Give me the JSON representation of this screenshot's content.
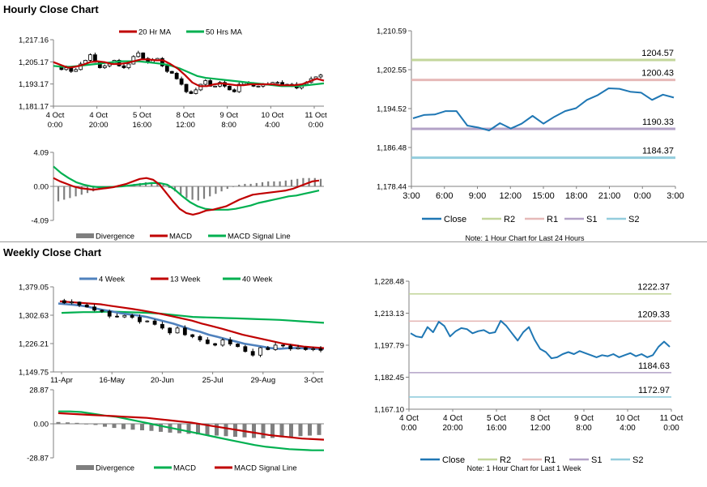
{
  "hourly_section": {
    "title": "Hourly Close Chart"
  },
  "weekly_section": {
    "title": "Weekly Close Chart"
  },
  "colors": {
    "ma_short": "#c00000",
    "ma_long": "#00b050",
    "week4": "#4f81bd",
    "divergence": "#7f7f7f",
    "close": "#1f77b4",
    "r2": "#c3d69b",
    "r1": "#e6b9b8",
    "s1": "#b3a2c7",
    "s2": "#93cddd"
  },
  "chart_data": [
    {
      "id": "hourly-price",
      "type": "line",
      "title": "Hourly Close Chart",
      "legend": [
        "20 Hr MA",
        "50 Hrs MA"
      ],
      "y_ticks": [
        "1,217.16",
        "1,205.17",
        "1,193.17",
        "1,181.17"
      ],
      "ylim": [
        1181.17,
        1217.16
      ],
      "x_ticks": [
        [
          "4 Oct",
          "0:00"
        ],
        [
          "4 Oct",
          "20:00"
        ],
        [
          "5 Oct",
          "16:00"
        ],
        [
          "8 Oct",
          "12:00"
        ],
        [
          "9 Oct",
          "8:00"
        ],
        [
          "10 Oct",
          "4:00"
        ],
        [
          "11 Oct",
          "0:00"
        ]
      ],
      "price": [
        1203,
        1201,
        1202,
        1200,
        1201,
        1204,
        1206,
        1209,
        1205,
        1202,
        1203,
        1204,
        1206,
        1203,
        1202,
        1204,
        1208,
        1210,
        1207,
        1205,
        1206,
        1207,
        1203,
        1200,
        1199,
        1196,
        1193,
        1189,
        1188,
        1190,
        1193,
        1195,
        1192,
        1192,
        1194,
        1192,
        1190,
        1189,
        1193,
        1194,
        1193,
        1192,
        1192,
        1193,
        1193,
        1194,
        1194,
        1193,
        1192,
        1193,
        1191,
        1193,
        1194,
        1196,
        1197,
        1198
      ],
      "series": [
        {
          "name": "20 Hr MA",
          "values": [
            1205,
            1203.5,
            1202,
            1202.5,
            1203.5,
            1205,
            1205.5,
            1205,
            1204,
            1204,
            1204.5,
            1205.5,
            1206.5,
            1206.5,
            1206,
            1206,
            1204,
            1201.5,
            1198,
            1194,
            1192,
            1192,
            1193,
            1193.5,
            1193,
            1192.5,
            1192.5,
            1193,
            1193,
            1193,
            1193,
            1192.5,
            1192.5,
            1192.5,
            1193,
            1194.5,
            1196,
            1195
          ]
        },
        {
          "name": "50 Hrs MA",
          "values": [
            1203,
            1202.5,
            1202.5,
            1203,
            1203.5,
            1204,
            1204.5,
            1205,
            1205.5,
            1205.5,
            1205.5,
            1205,
            1204.5,
            1204,
            1203,
            1201.5,
            1199.5,
            1197.5,
            1196.5,
            1196,
            1195.5,
            1195,
            1194.5,
            1194,
            1193.5,
            1193,
            1192.5,
            1192,
            1192,
            1192,
            1192.5,
            1193,
            1193.5
          ]
        }
      ]
    },
    {
      "id": "hourly-macd",
      "type": "bar",
      "legend": [
        "Divergence",
        "MACD",
        "MACD Signal Line"
      ],
      "y_ticks": [
        "4.09",
        "0.00",
        "-4.09"
      ],
      "ylim": [
        -4.09,
        4.09
      ],
      "divergence": [
        -1.8,
        -1.6,
        -1.4,
        -1.2,
        -1.0,
        -0.8,
        -0.6,
        -0.4,
        -0.3,
        -0.2,
        -0.1,
        0.1,
        0.2,
        0.3,
        0.4,
        0.5,
        0.5,
        0.4,
        0.2,
        -0.2,
        -0.6,
        -1.0,
        -1.4,
        -1.6,
        -1.7,
        -1.5,
        -1.2,
        -0.9,
        -0.6,
        -0.3,
        0.0,
        0.2,
        0.3,
        0.3,
        0.4,
        0.5,
        0.6,
        0.6,
        0.6,
        0.7,
        0.8,
        0.9,
        1.0,
        1.0,
        1.0,
        0.9
      ],
      "series": [
        {
          "name": "MACD",
          "values": [
            1.0,
            0.6,
            0.3,
            0.0,
            -0.2,
            -0.3,
            -0.4,
            -0.3,
            -0.2,
            -0.1,
            0.1,
            0.3,
            0.6,
            0.9,
            1.0,
            0.8,
            0.2,
            -0.8,
            -1.8,
            -2.7,
            -3.2,
            -3.4,
            -3.2,
            -2.9,
            -2.8,
            -2.6,
            -2.4,
            -2.0,
            -1.6,
            -1.3,
            -1.0,
            -0.9,
            -0.8,
            -0.7,
            -0.6,
            -0.5,
            -0.3,
            0.0,
            0.3,
            0.6,
            0.7
          ]
        },
        {
          "name": "MACD Signal Line",
          "values": [
            2.4,
            1.6,
            1.0,
            0.5,
            0.2,
            0.0,
            -0.1,
            -0.1,
            -0.05,
            0.0,
            0.1,
            0.2,
            0.3,
            0.4,
            0.4,
            0.2,
            -0.4,
            -1.2,
            -1.9,
            -2.4,
            -2.7,
            -2.8,
            -2.8,
            -2.8,
            -2.7,
            -2.5,
            -2.3,
            -2.0,
            -1.8,
            -1.6,
            -1.4,
            -1.2,
            -1.1,
            -0.9,
            -0.7,
            -0.5
          ]
        }
      ]
    },
    {
      "id": "hourly-pivot",
      "type": "line",
      "y_ticks": [
        "1,210.59",
        "1,202.55",
        "1,194.52",
        "1,186.48",
        "1,178.44"
      ],
      "ylim": [
        1178.44,
        1210.59
      ],
      "x_ticks": [
        "3:00",
        "6:00",
        "9:00",
        "12:00",
        "15:00",
        "18:00",
        "21:00",
        "0:00",
        "3:00"
      ],
      "close": [
        1192.5,
        1193.2,
        1193.3,
        1194.0,
        1194.0,
        1191.0,
        1190.6,
        1190.0,
        1191.5,
        1190.4,
        1191.4,
        1193.0,
        1191.4,
        1192.8,
        1194.0,
        1194.6,
        1196.3,
        1197.3,
        1198.7,
        1198.6,
        1198.0,
        1197.8,
        1196.3,
        1197.4,
        1196.8
      ],
      "levels": [
        {
          "name": "R2",
          "value": 1204.57,
          "label": "1204.57"
        },
        {
          "name": "R1",
          "value": 1200.43,
          "label": "1200.43"
        },
        {
          "name": "S1",
          "value": 1190.33,
          "label": "1190.33"
        },
        {
          "name": "S2",
          "value": 1184.37,
          "label": "1184.37"
        }
      ],
      "legend": [
        "Close",
        "R2",
        "R1",
        "S1",
        "S2"
      ],
      "note": "Note: 1 Hour Chart for Last 24 Hours"
    },
    {
      "id": "weekly-price",
      "type": "line",
      "title": "Weekly Close Chart",
      "legend": [
        "4 Week",
        "13 Week",
        "40 Week"
      ],
      "y_ticks": [
        "1,379.05",
        "1,302.63",
        "1,226.21",
        "1,149.75"
      ],
      "ylim": [
        1149.75,
        1379.05
      ],
      "x_ticks": [
        "11-Apr",
        "16-May",
        "20-Jun",
        "25-Jul",
        "29-Aug",
        "3-Oct"
      ],
      "price": [
        1342,
        1336,
        1338,
        1330,
        1325,
        1316,
        1313,
        1300,
        1298,
        1302,
        1297,
        1285,
        1287,
        1278,
        1268,
        1255,
        1268,
        1250,
        1245,
        1236,
        1226,
        1222,
        1236,
        1225,
        1218,
        1205,
        1195,
        1215,
        1210,
        1222,
        1220,
        1212,
        1215,
        1210,
        1212,
        1208
      ],
      "series": [
        {
          "name": "4 Week",
          "values": [
            1334,
            1332,
            1330,
            1327,
            1322,
            1317,
            1313,
            1308,
            1305,
            1302,
            1298,
            1292,
            1286,
            1280,
            1272,
            1264,
            1258,
            1250,
            1244,
            1238,
            1232,
            1226,
            1222,
            1218,
            1214,
            1212,
            1214,
            1214,
            1213,
            1212,
            1212
          ]
        },
        {
          "name": "13 Week",
          "values": [
            1340,
            1338,
            1336,
            1334,
            1332,
            1328,
            1324,
            1320,
            1316,
            1311,
            1306,
            1300,
            1294,
            1288,
            1280,
            1273,
            1266,
            1258,
            1250,
            1244,
            1238,
            1232,
            1226,
            1222,
            1218,
            1216,
            1214
          ]
        },
        {
          "name": "40 Week",
          "values": [
            1309,
            1310,
            1311,
            1311,
            1312,
            1312,
            1311,
            1310,
            1309,
            1307,
            1304,
            1301,
            1298,
            1297,
            1296,
            1295,
            1294,
            1293,
            1292,
            1291,
            1290,
            1288,
            1286,
            1284,
            1282
          ]
        }
      ]
    },
    {
      "id": "weekly-macd",
      "type": "bar",
      "legend": [
        "Divergence",
        "MACD",
        "MACD Signal Line"
      ],
      "y_ticks": [
        "28.87",
        "0.00",
        "-28.87"
      ],
      "ylim": [
        -28.87,
        28.87
      ],
      "divergence": [
        1.5,
        1.2,
        0.8,
        0.0,
        -1.0,
        -2.5,
        -3.5,
        -4.5,
        -5.0,
        -5.5,
        -6.0,
        -6.8,
        -7.5,
        -8.0,
        -8.5,
        -9.0,
        -9.5,
        -10.0,
        -10.5,
        -11.0,
        -11.5,
        -12.0,
        -12.3,
        -12.0,
        -11.5,
        -11.0,
        -10.5,
        -10.0,
        -9.5
      ],
      "series": [
        {
          "name": "MACD",
          "values": [
            10.5,
            10.5,
            10.0,
            8.5,
            7.0,
            6.0,
            4.0,
            2.0,
            0.0,
            -2.0,
            -4.0,
            -6.0,
            -8.0,
            -10.0,
            -12.0,
            -14.0,
            -16.0,
            -18.0,
            -19.5,
            -20.5,
            -21.5,
            -22.0,
            -22.5,
            -22.5
          ]
        },
        {
          "name": "MACD Signal Line",
          "values": [
            9.0,
            8.5,
            8.0,
            7.5,
            7.0,
            6.5,
            6.0,
            5.5,
            5.0,
            4.0,
            3.0,
            2.0,
            1.0,
            -0.5,
            -2.0,
            -3.5,
            -5.0,
            -6.5,
            -8.0,
            -9.5,
            -10.5,
            -11.5,
            -12.5,
            -13.0,
            -13.5
          ]
        }
      ]
    },
    {
      "id": "weekly-pivot",
      "type": "line",
      "y_ticks": [
        "1,228.48",
        "1,213.13",
        "1,197.79",
        "1,182.45",
        "1,167.10"
      ],
      "ylim": [
        1167.1,
        1228.48
      ],
      "x_ticks": [
        [
          "4 Oct",
          "0:00"
        ],
        [
          "4 Oct",
          "20:00"
        ],
        [
          "5 Oct",
          "16:00"
        ],
        [
          "8 Oct",
          "12:00"
        ],
        [
          "9 Oct",
          "8:00"
        ],
        [
          "10 Oct",
          "4:00"
        ],
        [
          "11 Oct",
          "0:00"
        ]
      ],
      "close": [
        1203.5,
        1202,
        1201.5,
        1206.5,
        1204,
        1209,
        1207,
        1202,
        1204.5,
        1206,
        1205.5,
        1203.5,
        1204.5,
        1205,
        1203.5,
        1204,
        1209.5,
        1207,
        1203.5,
        1200,
        1204,
        1206.5,
        1200.5,
        1196,
        1194.5,
        1191.5,
        1192,
        1193.5,
        1194.5,
        1193.5,
        1195,
        1194,
        1193,
        1192,
        1193,
        1192.5,
        1193.5,
        1192,
        1193,
        1194,
        1192.5,
        1193.5,
        1192,
        1193,
        1197,
        1199.5,
        1197
      ],
      "levels": [
        {
          "name": "R2",
          "value": 1222.37,
          "label": "1222.37"
        },
        {
          "name": "R1",
          "value": 1209.33,
          "label": "1209.33"
        },
        {
          "name": "S1",
          "value": 1184.63,
          "label": "1184.63"
        },
        {
          "name": "S2",
          "value": 1172.97,
          "label": "1172.97"
        }
      ],
      "legend": [
        "Close",
        "R2",
        "R1",
        "S1",
        "S2"
      ],
      "note": "Note: 1 Hour Chart for Last 1 Week"
    }
  ]
}
